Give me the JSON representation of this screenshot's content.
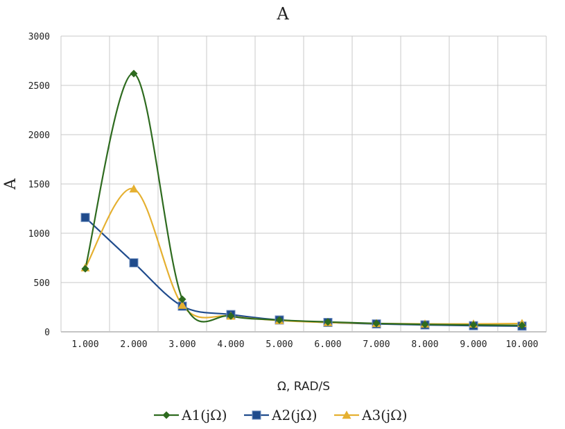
{
  "chart_data": {
    "type": "line",
    "title": "A",
    "xlabel": "Ω, RAD/S",
    "ylabel": "A",
    "categories": [
      "1.000",
      "2.000",
      "3.000",
      "4.000",
      "5.000",
      "6.000",
      "7.000",
      "8.000",
      "9.000",
      "10.000"
    ],
    "x": [
      1,
      2,
      3,
      4,
      5,
      6,
      7,
      8,
      9,
      10
    ],
    "ylim": [
      0,
      3000
    ],
    "yticks": [
      "0",
      "500",
      "1000",
      "1500",
      "2000",
      "2500",
      "3000"
    ],
    "grid": true,
    "legend_position": "bottom",
    "smooth": true,
    "series": [
      {
        "name": "A1(jΩ)",
        "color": "#2e6b1f",
        "marker": "diamond",
        "values": [
          640,
          2620,
          330,
          160,
          120,
          100,
          85,
          75,
          70,
          65
        ]
      },
      {
        "name": "A2(jΩ)",
        "color": "#1f4b8c",
        "marker": "square",
        "values": [
          1160,
          700,
          260,
          175,
          120,
          95,
          80,
          70,
          62,
          58
        ]
      },
      {
        "name": "A3(jΩ)",
        "color": "#e5b030",
        "marker": "triangle",
        "values": [
          650,
          1450,
          270,
          160,
          115,
          95,
          85,
          80,
          80,
          85
        ]
      }
    ]
  }
}
